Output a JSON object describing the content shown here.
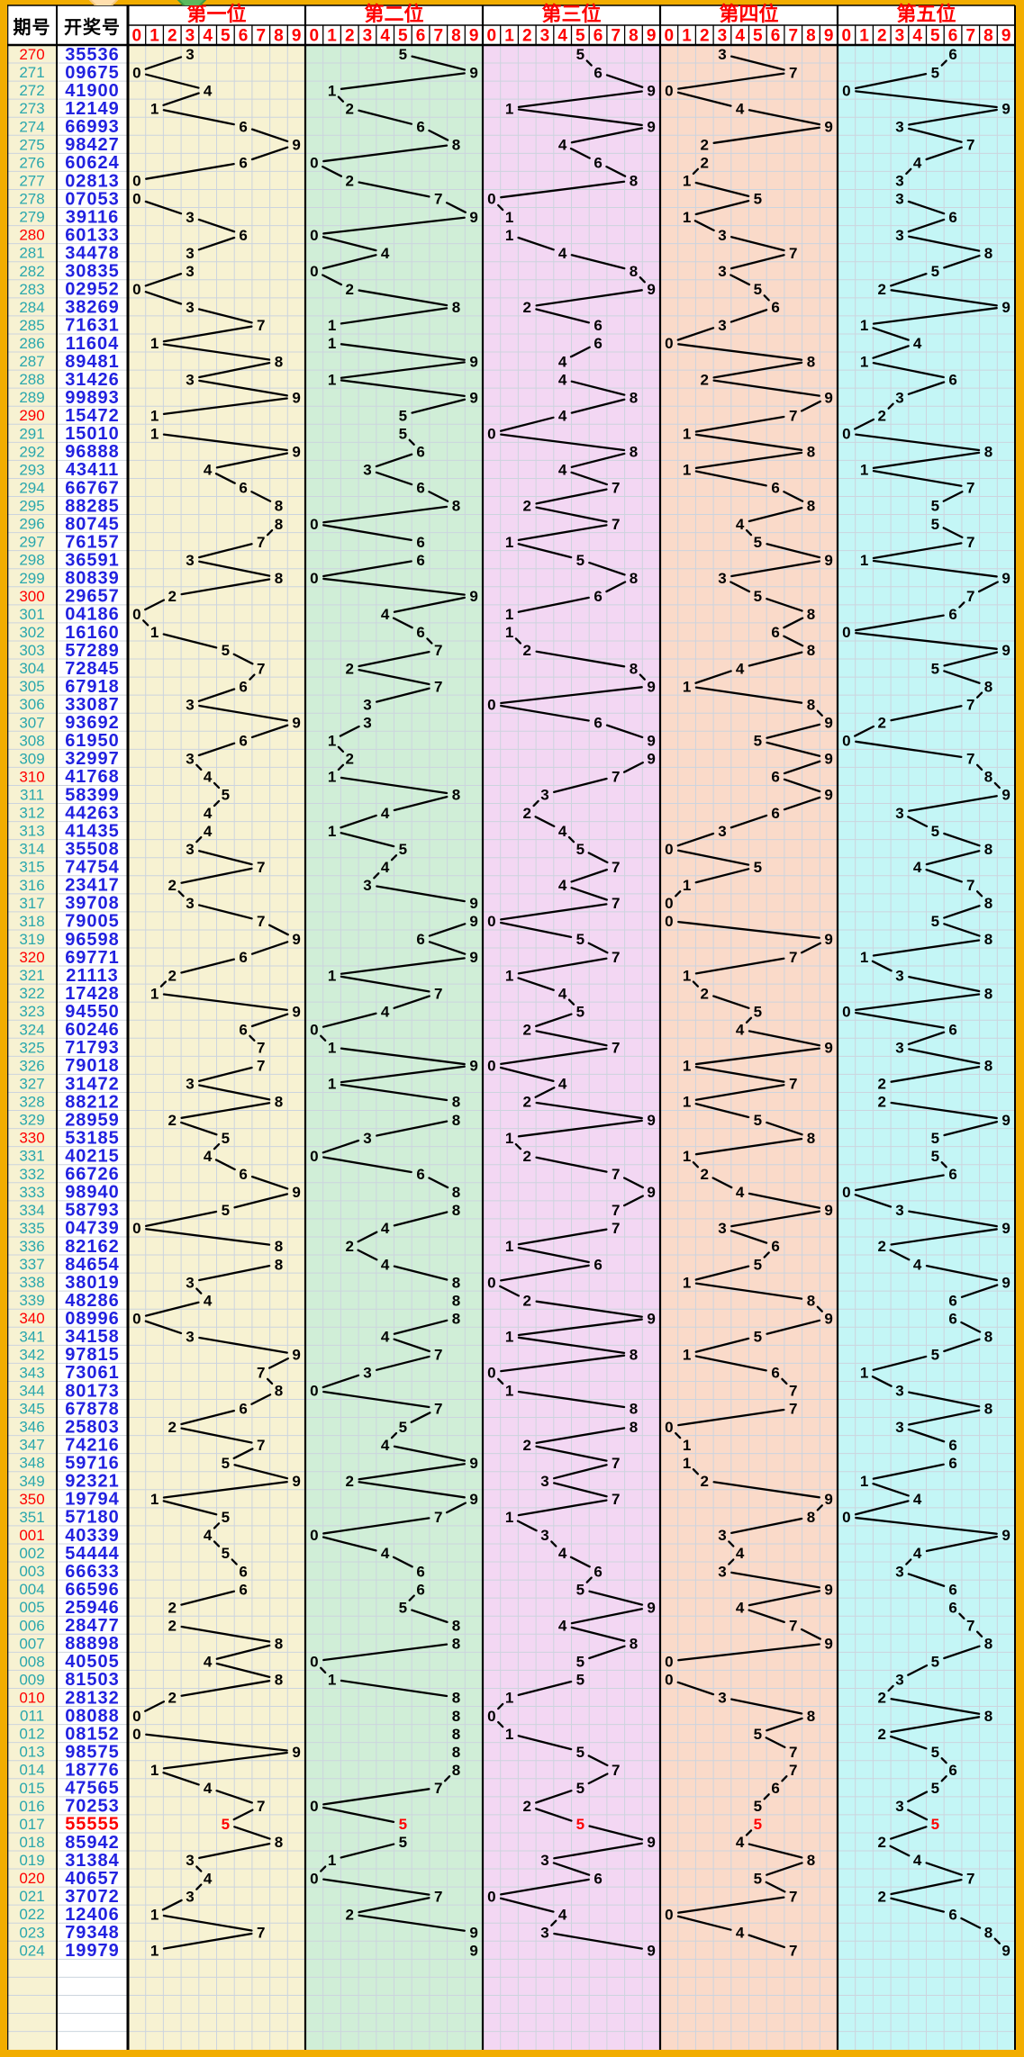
{
  "header": {
    "period_label": "期号",
    "number_label": "开奖号",
    "sections": [
      "第一位",
      "第二位",
      "第三位",
      "第四位",
      "第五位"
    ],
    "digit_labels": [
      "0",
      "1",
      "2",
      "3",
      "4",
      "5",
      "6",
      "7",
      "8",
      "9"
    ]
  },
  "rows": [
    [
      "270",
      "35536"
    ],
    [
      "271",
      "09675"
    ],
    [
      "272",
      "41900"
    ],
    [
      "273",
      "12149"
    ],
    [
      "274",
      "66993"
    ],
    [
      "275",
      "98427"
    ],
    [
      "276",
      "60624"
    ],
    [
      "277",
      "02813"
    ],
    [
      "278",
      "07053"
    ],
    [
      "279",
      "39116"
    ],
    [
      "280",
      "60133"
    ],
    [
      "281",
      "34478"
    ],
    [
      "282",
      "30835"
    ],
    [
      "283",
      "02952"
    ],
    [
      "284",
      "38269"
    ],
    [
      "285",
      "71631"
    ],
    [
      "286",
      "11604"
    ],
    [
      "287",
      "89481"
    ],
    [
      "288",
      "31426"
    ],
    [
      "289",
      "99893"
    ],
    [
      "290",
      "15472"
    ],
    [
      "291",
      "15010"
    ],
    [
      "292",
      "96888"
    ],
    [
      "293",
      "43411"
    ],
    [
      "294",
      "66767"
    ],
    [
      "295",
      "88285"
    ],
    [
      "296",
      "80745"
    ],
    [
      "297",
      "76157"
    ],
    [
      "298",
      "36591"
    ],
    [
      "299",
      "80839"
    ],
    [
      "300",
      "29657"
    ],
    [
      "301",
      "04186"
    ],
    [
      "302",
      "16160"
    ],
    [
      "303",
      "57289"
    ],
    [
      "304",
      "72845"
    ],
    [
      "305",
      "67918"
    ],
    [
      "306",
      "33087"
    ],
    [
      "307",
      "93692"
    ],
    [
      "308",
      "61950"
    ],
    [
      "309",
      "32997"
    ],
    [
      "310",
      "41768"
    ],
    [
      "311",
      "58399"
    ],
    [
      "312",
      "44263"
    ],
    [
      "313",
      "41435"
    ],
    [
      "314",
      "35508"
    ],
    [
      "315",
      "74754"
    ],
    [
      "316",
      "23417"
    ],
    [
      "317",
      "39708"
    ],
    [
      "318",
      "79005"
    ],
    [
      "319",
      "96598"
    ],
    [
      "320",
      "69771"
    ],
    [
      "321",
      "21113"
    ],
    [
      "322",
      "17428"
    ],
    [
      "323",
      "94550"
    ],
    [
      "324",
      "60246"
    ],
    [
      "325",
      "71793"
    ],
    [
      "326",
      "79018"
    ],
    [
      "327",
      "31472"
    ],
    [
      "328",
      "88212"
    ],
    [
      "329",
      "28959"
    ],
    [
      "330",
      "53185"
    ],
    [
      "331",
      "40215"
    ],
    [
      "332",
      "66726"
    ],
    [
      "333",
      "98940"
    ],
    [
      "334",
      "58793"
    ],
    [
      "335",
      "04739"
    ],
    [
      "336",
      "82162"
    ],
    [
      "337",
      "84654"
    ],
    [
      "338",
      "38019"
    ],
    [
      "339",
      "48286"
    ],
    [
      "340",
      "08996"
    ],
    [
      "341",
      "34158"
    ],
    [
      "342",
      "97815"
    ],
    [
      "343",
      "73061"
    ],
    [
      "344",
      "80173"
    ],
    [
      "345",
      "67878"
    ],
    [
      "346",
      "25803"
    ],
    [
      "347",
      "74216"
    ],
    [
      "348",
      "59716"
    ],
    [
      "349",
      "92321"
    ],
    [
      "350",
      "19794"
    ],
    [
      "351",
      "57180"
    ],
    [
      "001",
      "40339"
    ],
    [
      "002",
      "54444"
    ],
    [
      "003",
      "66633"
    ],
    [
      "004",
      "66596"
    ],
    [
      "005",
      "25946"
    ],
    [
      "006",
      "28477"
    ],
    [
      "007",
      "88898"
    ],
    [
      "008",
      "40505"
    ],
    [
      "009",
      "81503"
    ],
    [
      "010",
      "28132"
    ],
    [
      "011",
      "08088"
    ],
    [
      "012",
      "08152"
    ],
    [
      "013",
      "98575"
    ],
    [
      "014",
      "18776"
    ],
    [
      "015",
      "47565"
    ],
    [
      "016",
      "70253"
    ],
    [
      "017",
      "55555"
    ],
    [
      "018",
      "85942"
    ],
    [
      "019",
      "31384"
    ],
    [
      "020",
      "40657"
    ],
    [
      "021",
      "37072"
    ],
    [
      "022",
      "12406"
    ],
    [
      "023",
      "79348"
    ],
    [
      "024",
      "19979"
    ]
  ],
  "highlight": {
    "red_periods": [
      "270",
      "280",
      "290",
      "300",
      "310",
      "320",
      "330",
      "340",
      "350",
      "001",
      "010",
      "020"
    ],
    "red_number_rows": [
      "017"
    ]
  },
  "colors": {
    "frame": "#f2ad00",
    "header_bg": "#ffffff",
    "period_col_bg": "#f7f2d2",
    "number_col_bg": "#ffffff",
    "section_bgs": [
      "#f7f2d2",
      "#d0eed7",
      "#f3d7f3",
      "#fadac9",
      "#c4f6f6"
    ],
    "grid": "#ccd4de",
    "trend_line": "#000000",
    "header_text_red": "#fe0000",
    "period_text": "#2aa7ad",
    "period_text_red": "#fe0000",
    "number_text": "#2222e0",
    "number_text_red": "#fe0000",
    "digit_text": "#000000",
    "digit_text_red": "#fe0000",
    "structure_line": "#000000"
  },
  "chart_data": {
    "type": "line",
    "x": [
      "270",
      "271",
      "272",
      "273",
      "274",
      "275",
      "276",
      "277",
      "278",
      "279",
      "280",
      "281",
      "282",
      "283",
      "284",
      "285",
      "286",
      "287",
      "288",
      "289",
      "290",
      "291",
      "292",
      "293",
      "294",
      "295",
      "296",
      "297",
      "298",
      "299",
      "300",
      "301",
      "302",
      "303",
      "304",
      "305",
      "306",
      "307",
      "308",
      "309",
      "310",
      "311",
      "312",
      "313",
      "314",
      "315",
      "316",
      "317",
      "318",
      "319",
      "320",
      "321",
      "322",
      "323",
      "324",
      "325",
      "326",
      "327",
      "328",
      "329",
      "330",
      "331",
      "332",
      "333",
      "334",
      "335",
      "336",
      "337",
      "338",
      "339",
      "340",
      "341",
      "342",
      "343",
      "344",
      "345",
      "346",
      "347",
      "348",
      "349",
      "350",
      "351",
      "001",
      "002",
      "003",
      "004",
      "005",
      "006",
      "007",
      "008",
      "009",
      "010",
      "011",
      "012",
      "013",
      "014",
      "015",
      "016",
      "017",
      "018",
      "019",
      "020",
      "021",
      "022",
      "023",
      "024"
    ],
    "series": [
      {
        "name": "第一位",
        "values": [
          3,
          0,
          4,
          1,
          6,
          9,
          6,
          0,
          0,
          3,
          6,
          3,
          3,
          0,
          3,
          7,
          1,
          8,
          3,
          9,
          1,
          1,
          9,
          4,
          6,
          8,
          8,
          7,
          3,
          8,
          2,
          0,
          1,
          5,
          7,
          6,
          3,
          9,
          6,
          3,
          4,
          5,
          4,
          4,
          3,
          7,
          2,
          3,
          7,
          9,
          6,
          2,
          1,
          9,
          6,
          7,
          7,
          3,
          8,
          2,
          5,
          4,
          6,
          9,
          5,
          0,
          8,
          8,
          3,
          4,
          0,
          3,
          9,
          7,
          8,
          6,
          2,
          7,
          5,
          9,
          1,
          5,
          4,
          5,
          6,
          6,
          2,
          2,
          8,
          4,
          8,
          2,
          0,
          0,
          9,
          1,
          4,
          7,
          5,
          8,
          3,
          4,
          3,
          1,
          7,
          1
        ]
      },
      {
        "name": "第二位",
        "values": [
          5,
          9,
          1,
          2,
          6,
          8,
          0,
          2,
          7,
          9,
          0,
          4,
          0,
          2,
          8,
          1,
          1,
          9,
          1,
          9,
          5,
          5,
          6,
          3,
          6,
          8,
          0,
          6,
          6,
          0,
          9,
          4,
          6,
          7,
          2,
          7,
          3,
          3,
          1,
          2,
          1,
          8,
          4,
          1,
          5,
          4,
          3,
          9,
          9,
          6,
          9,
          1,
          7,
          4,
          0,
          1,
          9,
          1,
          8,
          8,
          3,
          0,
          6,
          8,
          8,
          4,
          2,
          4,
          8,
          8,
          8,
          4,
          7,
          3,
          0,
          7,
          5,
          4,
          9,
          2,
          9,
          7,
          0,
          4,
          6,
          6,
          5,
          8,
          8,
          0,
          1,
          8,
          8,
          8,
          8,
          8,
          7,
          0,
          5,
          5,
          1,
          0,
          7,
          2,
          9,
          9
        ]
      },
      {
        "name": "第三位",
        "values": [
          5,
          6,
          9,
          1,
          9,
          4,
          6,
          8,
          0,
          1,
          1,
          4,
          8,
          9,
          2,
          6,
          6,
          4,
          4,
          8,
          4,
          0,
          8,
          4,
          7,
          2,
          7,
          1,
          5,
          8,
          6,
          1,
          1,
          2,
          8,
          9,
          0,
          6,
          9,
          9,
          7,
          3,
          2,
          4,
          5,
          7,
          4,
          7,
          0,
          5,
          7,
          1,
          4,
          5,
          2,
          7,
          0,
          4,
          2,
          9,
          1,
          2,
          7,
          9,
          7,
          7,
          1,
          6,
          0,
          2,
          9,
          1,
          8,
          0,
          1,
          8,
          8,
          2,
          7,
          3,
          7,
          1,
          3,
          4,
          6,
          5,
          9,
          4,
          8,
          5,
          5,
          1,
          0,
          1,
          5,
          7,
          5,
          2,
          5,
          9,
          3,
          6,
          0,
          4,
          3,
          9
        ]
      },
      {
        "name": "第四位",
        "values": [
          3,
          7,
          0,
          4,
          9,
          2,
          2,
          1,
          5,
          1,
          3,
          7,
          3,
          5,
          6,
          3,
          0,
          8,
          2,
          9,
          7,
          1,
          8,
          1,
          6,
          8,
          4,
          5,
          9,
          3,
          5,
          8,
          6,
          8,
          4,
          1,
          8,
          9,
          5,
          9,
          6,
          9,
          6,
          3,
          0,
          5,
          1,
          0,
          0,
          9,
          7,
          1,
          2,
          5,
          4,
          9,
          1,
          7,
          1,
          5,
          8,
          1,
          2,
          4,
          9,
          3,
          6,
          5,
          1,
          8,
          9,
          5,
          1,
          6,
          7,
          7,
          0,
          1,
          1,
          2,
          9,
          8,
          3,
          4,
          3,
          9,
          4,
          7,
          9,
          0,
          0,
          3,
          8,
          5,
          7,
          7,
          6,
          5,
          5,
          4,
          8,
          5,
          7,
          0,
          4,
          7
        ]
      },
      {
        "name": "第五位",
        "values": [
          6,
          5,
          0,
          9,
          3,
          7,
          4,
          3,
          3,
          6,
          3,
          8,
          5,
          2,
          9,
          1,
          4,
          1,
          6,
          3,
          2,
          0,
          8,
          1,
          7,
          5,
          5,
          7,
          1,
          9,
          7,
          6,
          0,
          9,
          5,
          8,
          7,
          2,
          0,
          7,
          8,
          9,
          3,
          5,
          8,
          4,
          7,
          8,
          5,
          8,
          1,
          3,
          8,
          0,
          6,
          3,
          8,
          2,
          2,
          9,
          5,
          5,
          6,
          0,
          3,
          9,
          2,
          4,
          9,
          6,
          6,
          8,
          5,
          1,
          3,
          8,
          3,
          6,
          6,
          1,
          4,
          0,
          9,
          4,
          3,
          6,
          6,
          7,
          8,
          5,
          3,
          2,
          8,
          2,
          5,
          6,
          5,
          3,
          5,
          2,
          4,
          7,
          2,
          6,
          8,
          9
        ]
      }
    ],
    "ylim": [
      0,
      9
    ],
    "grid": true,
    "legend_position": "top"
  }
}
